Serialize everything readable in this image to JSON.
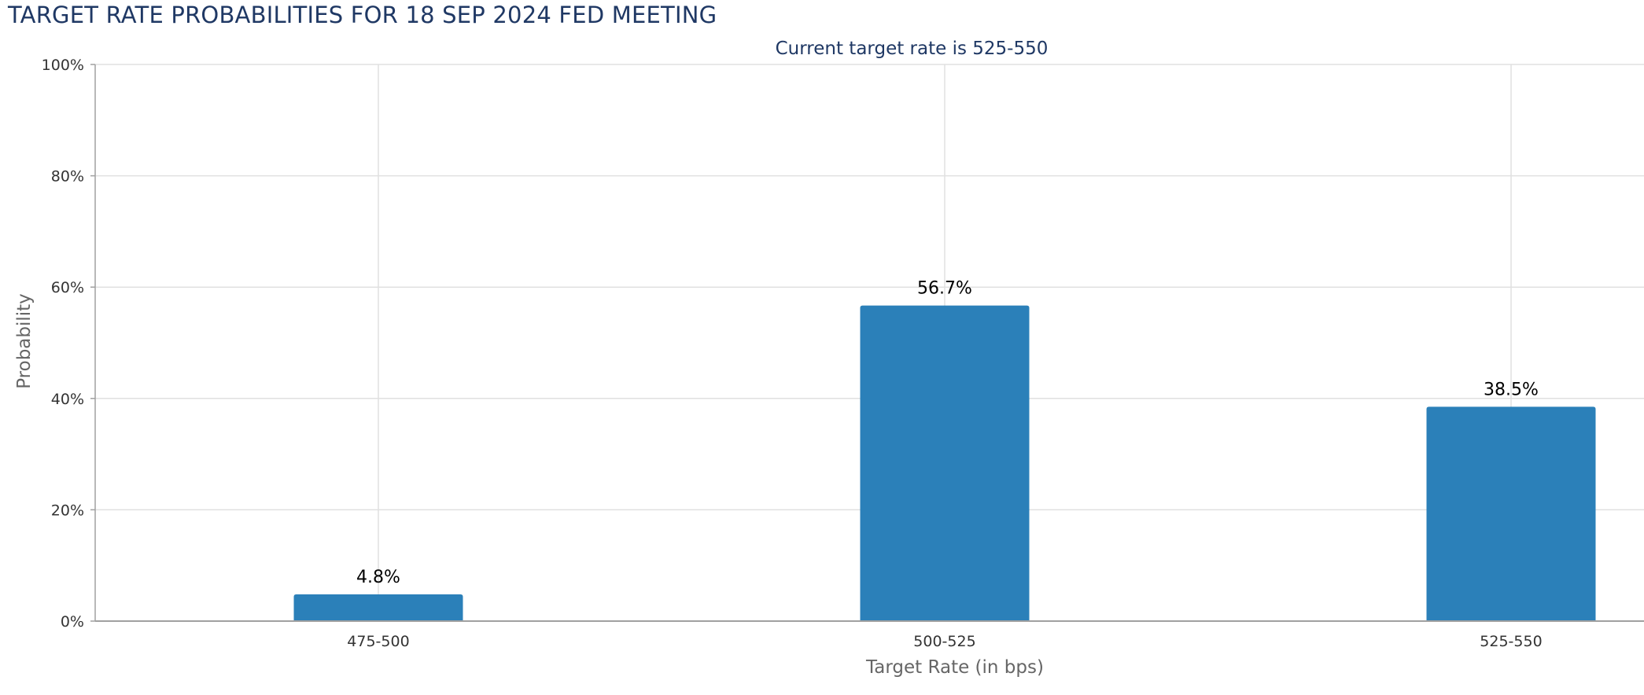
{
  "page": {
    "title": "TARGET RATE PROBABILITIES FOR 18 SEP 2024 FED MEETING"
  },
  "chart_data": {
    "type": "bar",
    "title": "",
    "subtitle": "Current target rate is 525-550",
    "xlabel": "Target Rate (in bps)",
    "ylabel": "Probability",
    "categories": [
      "475-500",
      "500-525",
      "525-550"
    ],
    "values": [
      4.8,
      56.7,
      38.5
    ],
    "data_labels": [
      "4.8%",
      "56.7%",
      "38.5%"
    ],
    "ylim": [
      0,
      100
    ],
    "yticks": [
      0,
      20,
      40,
      60,
      80,
      100
    ],
    "ytick_labels": [
      "0%",
      "20%",
      "40%",
      "60%",
      "80%",
      "100%"
    ],
    "grid": true,
    "legend": "none",
    "colors": {
      "bar": "#2b80b9",
      "grid": "#e0e0e0",
      "axis": "#a0a0a0",
      "title": "#1f3864"
    }
  }
}
